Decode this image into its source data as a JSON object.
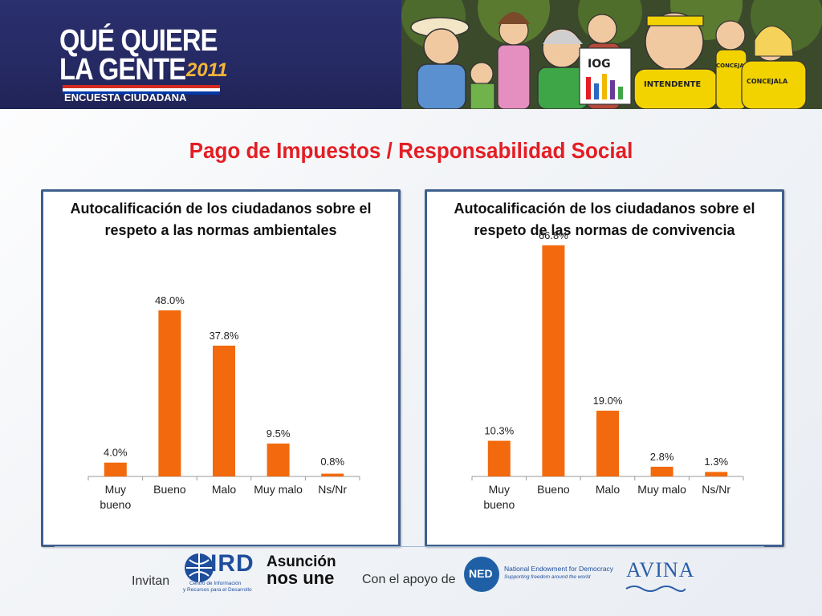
{
  "header": {
    "logo_line1": "QUÉ QUIERE",
    "logo_line2": "LA GENTE",
    "logo_year": "2011",
    "logo_sub": "ENCUESTA CIUDADANA",
    "cartoon_signs": [
      "IOG",
      "INTENDENTE",
      "CONCEJALES",
      "CONCEJALA"
    ]
  },
  "title": "Pago de Impuestos / Responsabilidad Social",
  "colors": {
    "bar": "#f26a0d",
    "panel_border": "#3f5f8c",
    "title": "#e31e24",
    "header_bg": "#262a63"
  },
  "chart_data": [
    {
      "type": "bar",
      "title": "Autocalificación de los ciudadanos sobre el respeto a las normas ambientales",
      "categories": [
        "Muy bueno",
        "Bueno",
        "Malo",
        "Muy malo",
        "Ns/Nr"
      ],
      "values": [
        4.0,
        48.0,
        37.8,
        9.5,
        0.8
      ],
      "value_labels": [
        "4.0%",
        "48.0%",
        "37.8%",
        "9.5%",
        "0.8%"
      ],
      "ylim": [
        0,
        70
      ],
      "grid": false,
      "legend": "none"
    },
    {
      "type": "bar",
      "title": "Autocalificación de los ciudadanos sobre el respeto de las normas de convivencia",
      "categories": [
        "Muy bueno",
        "Bueno",
        "Malo",
        "Muy malo",
        "Ns/Nr"
      ],
      "values": [
        10.3,
        66.8,
        19.0,
        2.8,
        1.3
      ],
      "value_labels": [
        "10.3%",
        "66.8%",
        "19.0%",
        "2.8%",
        "1.3%"
      ],
      "ylim": [
        0,
        70
      ],
      "grid": false,
      "legend": "none"
    }
  ],
  "footer": {
    "invitan": "Invitan",
    "ird_name": "IRD",
    "ird_sub1": "Centro de Información",
    "ird_sub2": "y Recursos para el Desarrollo",
    "asuncion_top": "Asunción",
    "asuncion_bottom": "nos une",
    "apoyo": "Con el apoyo de",
    "ned": "NED",
    "ned_name": "National Endowment for Democracy",
    "ned_tagline": "Supporting freedom around the world",
    "avina": "AVINA"
  }
}
